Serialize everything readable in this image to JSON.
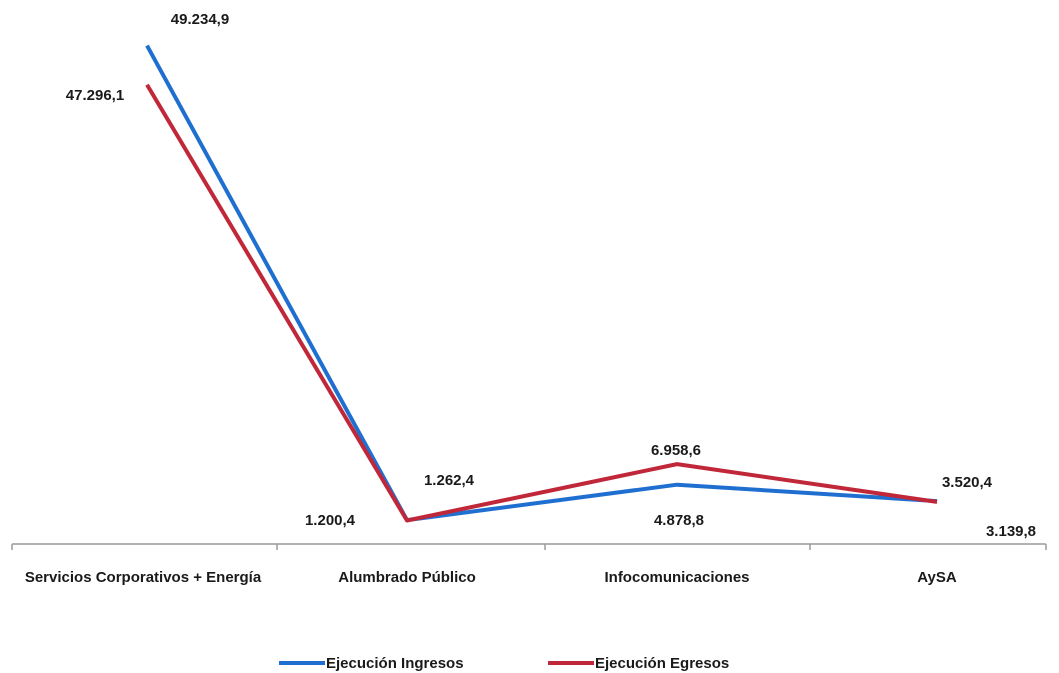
{
  "chart_data": {
    "type": "line",
    "categories": [
      "Servicios Corporativos + Energía",
      "Alumbrado Público",
      "Infocomunicaciones",
      "AySA"
    ],
    "series": [
      {
        "name": "Ejecución Ingresos",
        "color": "#1f6fd1",
        "values": [
          49234.9,
          1200.4,
          4878.8,
          3520.4
        ],
        "labels": [
          "49.234,9",
          "1.200,4",
          "4.878,8",
          "3.520,4"
        ]
      },
      {
        "name": "Ejecución Egresos",
        "color": "#c0283a",
        "values": [
          47296.1,
          1262.4,
          6958.6,
          3139.8
        ],
        "labels": [
          "47.296,1",
          "1.262,4",
          "6.958,6",
          "3.139,8"
        ]
      }
    ],
    "title": "",
    "xlabel": "",
    "ylabel": "",
    "ylim": [
      0,
      50000
    ],
    "grid": false,
    "legend": "bottom"
  }
}
